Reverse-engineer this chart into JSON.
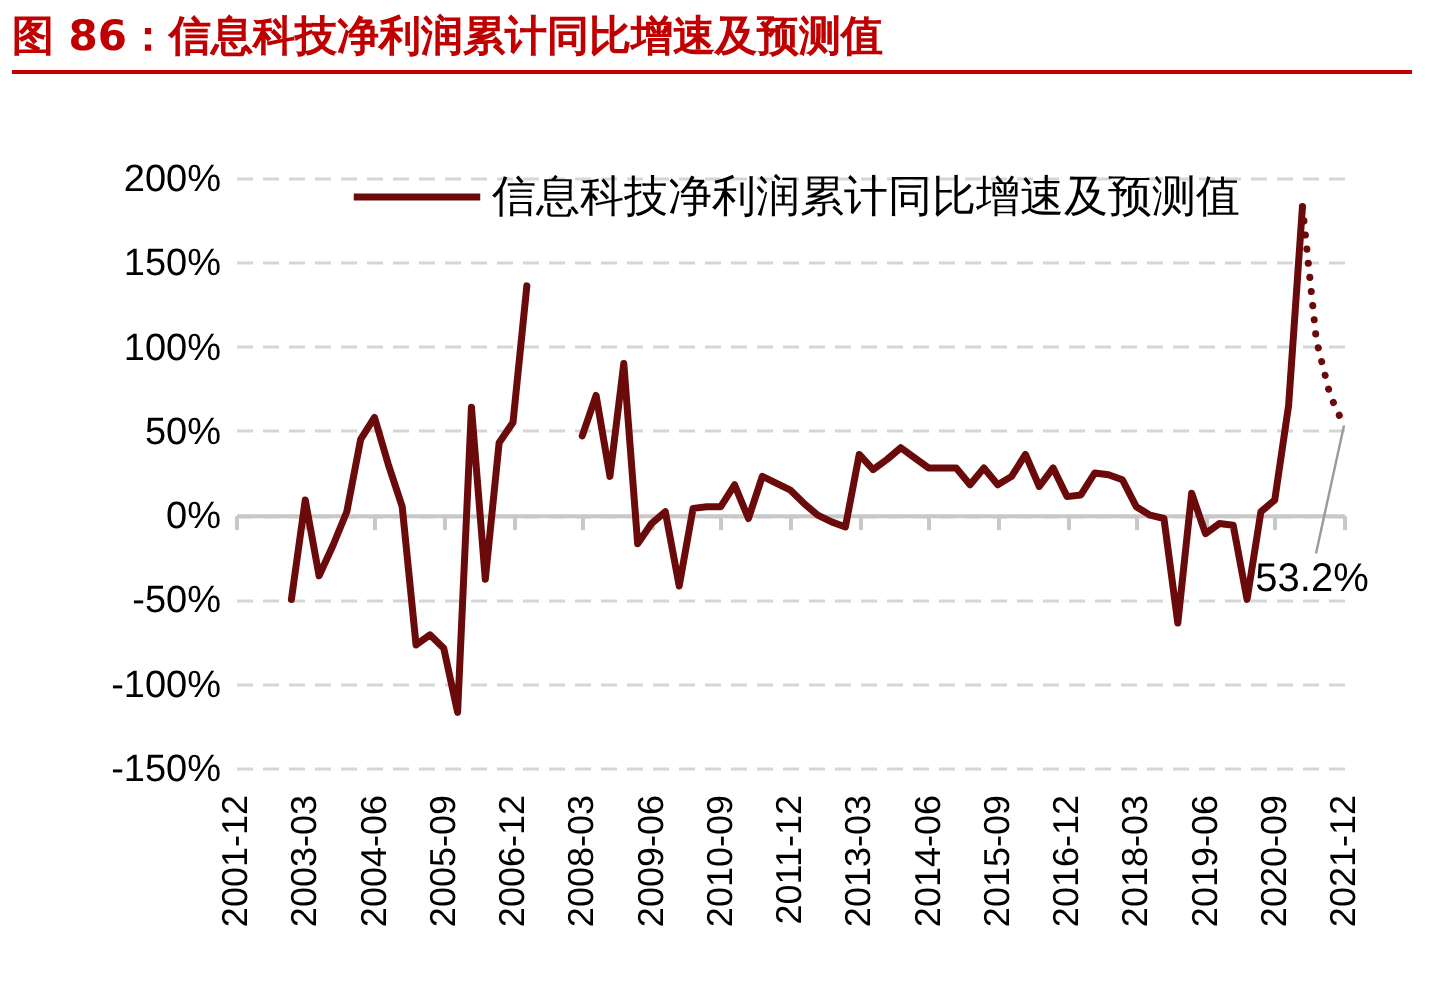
{
  "chart_data": {
    "type": "line",
    "title": "图 86：信息科技净利润累计同比增速及预测值",
    "categories": [
      "2001-12",
      null,
      null,
      null,
      null,
      "2003-03",
      null,
      null,
      null,
      null,
      "2004-06",
      null,
      null,
      null,
      null,
      "2005-09",
      null,
      null,
      null,
      null,
      "2006-12",
      null,
      null,
      null,
      null,
      "2008-03",
      null,
      null,
      null,
      null,
      "2009-06",
      null,
      null,
      null,
      null,
      "2010-09",
      null,
      null,
      null,
      null,
      "2011-12",
      null,
      null,
      null,
      null,
      "2013-03",
      null,
      null,
      null,
      null,
      "2014-06",
      null,
      null,
      null,
      null,
      "2015-09",
      null,
      null,
      null,
      null,
      "2016-12",
      null,
      null,
      null,
      null,
      "2018-03",
      null,
      null,
      null,
      null,
      "2019-06",
      null,
      null,
      null,
      null,
      "2020-09",
      null,
      null,
      null,
      null,
      "2021-12"
    ],
    "series": [
      {
        "name": "信息科技净利润累计同比增速及预测值",
        "color": "#6a0a0a",
        "line_style": "solid",
        "values": [
          null,
          null,
          null,
          null,
          -50,
          9,
          -36,
          -18,
          2,
          45,
          58,
          30,
          5,
          -77,
          -71,
          -79,
          -117,
          64,
          -38,
          43,
          55,
          136,
          null,
          null,
          null,
          47,
          71,
          23,
          90,
          -17,
          -5,
          2,
          -42,
          4,
          5,
          5,
          18,
          -2,
          23,
          19,
          15,
          7,
          0,
          -4,
          -7,
          36,
          27,
          33,
          40,
          34,
          28,
          28,
          28,
          18,
          28,
          18,
          23,
          36,
          17,
          28,
          11,
          12,
          25,
          24,
          21,
          5,
          0,
          -2,
          -64,
          13,
          -11,
          -5,
          -6,
          -50,
          2,
          9,
          65,
          183,
          null,
          null,
          null
        ]
      },
      {
        "color": "#6a0a0a",
        "line_style": "dotted",
        "values": [
          null,
          null,
          null,
          null,
          null,
          null,
          null,
          null,
          null,
          null,
          null,
          null,
          null,
          null,
          null,
          null,
          null,
          null,
          null,
          null,
          null,
          null,
          null,
          null,
          null,
          null,
          null,
          null,
          null,
          null,
          null,
          null,
          null,
          null,
          null,
          null,
          null,
          null,
          null,
          null,
          null,
          null,
          null,
          null,
          null,
          null,
          null,
          null,
          null,
          null,
          null,
          null,
          null,
          null,
          null,
          null,
          null,
          null,
          null,
          null,
          null,
          null,
          null,
          null,
          null,
          null,
          null,
          null,
          null,
          null,
          null,
          null,
          null,
          null,
          null,
          null,
          null,
          183,
          104,
          71,
          53.2
        ]
      }
    ],
    "ylim": [
      -150,
      200
    ],
    "yticks": [
      {
        "value": -150,
        "label": "-150%"
      },
      {
        "value": -100,
        "label": "-100%"
      },
      {
        "value": -50,
        "label": "-50%"
      },
      {
        "value": 0,
        "label": "0%"
      },
      {
        "value": 50,
        "label": "50%"
      },
      {
        "value": 100,
        "label": "100%"
      },
      {
        "value": 150,
        "label": "150%"
      },
      {
        "value": 200,
        "label": "200%"
      }
    ],
    "grid": "y",
    "legend": "top",
    "marker": "none",
    "annotations": [
      {
        "text": "53.2%",
        "x": "2021-12",
        "y": 53.2
      }
    ]
  }
}
